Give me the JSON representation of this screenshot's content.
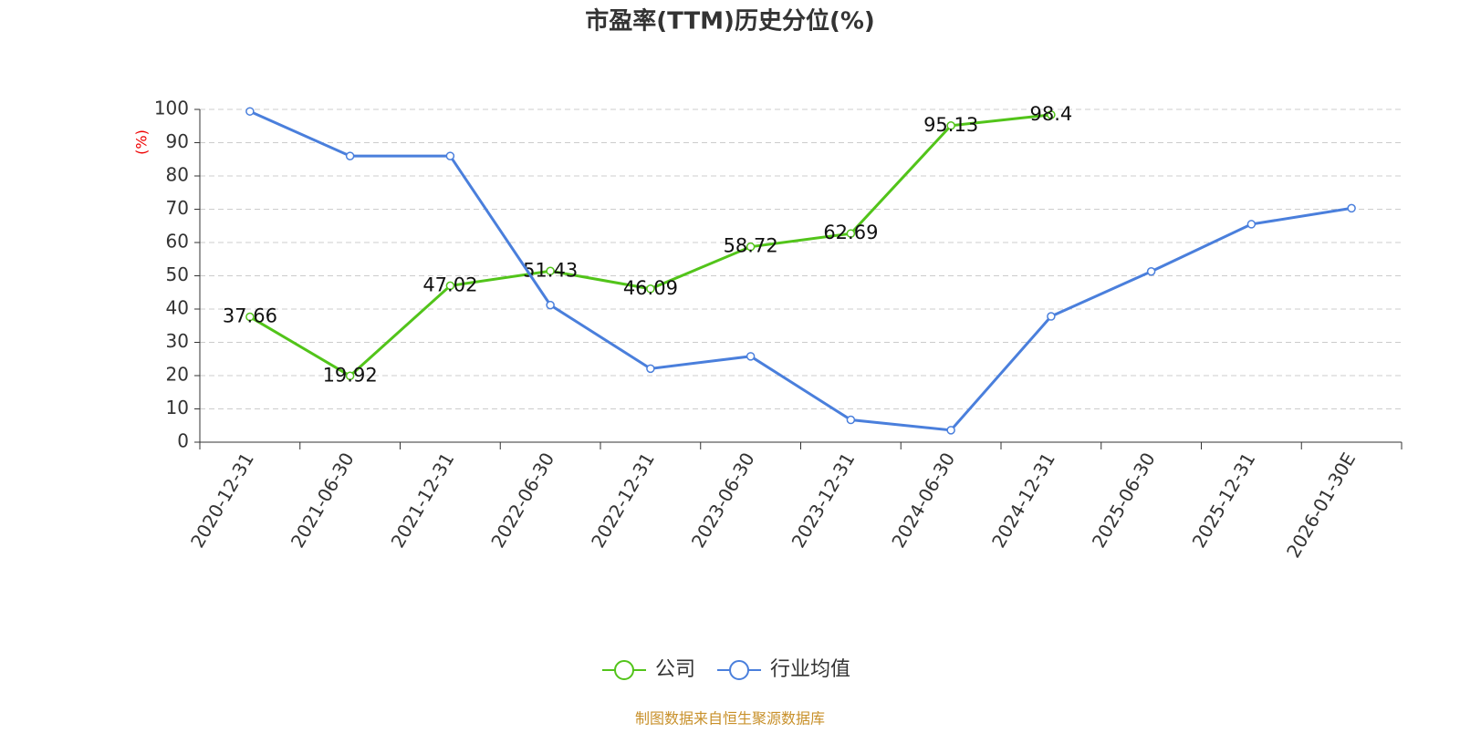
{
  "chart_data": {
    "type": "line",
    "title": "市盈率(TTM)历史分位(%)",
    "y_label": "(%)",
    "categories": [
      "2020-12-31",
      "2021-06-30",
      "2021-12-31",
      "2022-06-30",
      "2022-12-31",
      "2023-06-30",
      "2023-12-31",
      "2024-06-30",
      "2024-12-31",
      "2025-06-30",
      "2025-12-31",
      "2026-01-30E"
    ],
    "series": [
      {
        "name": "公司",
        "color": "#52c41a",
        "values": [
          37.66,
          19.92,
          47.02,
          51.43,
          46.09,
          58.72,
          62.69,
          95.13,
          98.4,
          null,
          null,
          null
        ],
        "show_labels": true
      },
      {
        "name": "行业均值",
        "color": "#4a7fdc",
        "values": [
          99.4,
          86,
          86,
          41.2,
          22.1,
          25.8,
          6.7,
          3.6,
          37.8,
          51.3,
          65.5,
          70.3
        ],
        "show_labels": false
      }
    ],
    "ylim": [
      0,
      100
    ],
    "yticks": [
      0,
      10,
      20,
      30,
      40,
      50,
      60,
      70,
      80,
      90,
      100
    ],
    "grid": true,
    "source": "制图数据来自恒生聚源数据库"
  }
}
